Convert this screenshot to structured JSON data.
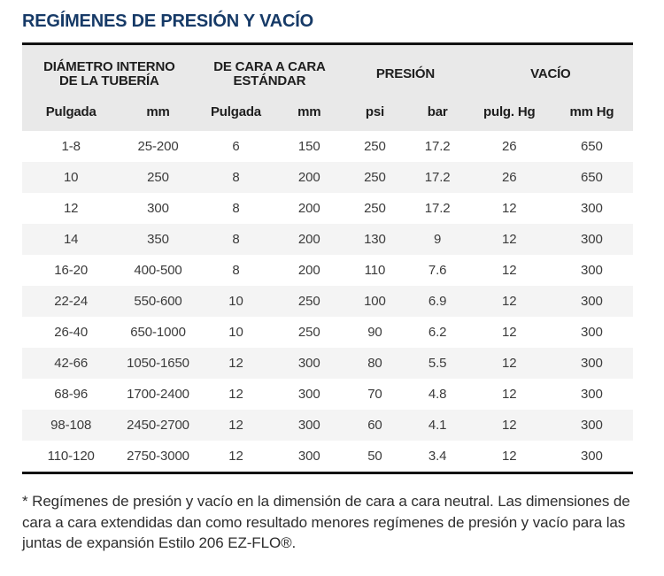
{
  "page": {
    "title": "REGÍMENES DE PRESIÓN Y VACÍO",
    "footnote": "* Regímenes de presión y vacío en la dimensión de cara a cara neutral. Las dimensiones de cara a cara extendidas dan como resultado menores regímenes de presión y vacío para las juntas de expansión Estilo 206 EZ-FLO®."
  },
  "colors": {
    "title_blue": "#163a67",
    "rule_black": "#121212",
    "header_bg": "#e9e9e9",
    "stripe_bg": "#f4f4f4",
    "header_text": "#1e1e1e",
    "cell_text": "#3b3b3b"
  },
  "table": {
    "group_headers": [
      {
        "line1": "DIÁMETRO INTERNO",
        "line2": "DE LA TUBERÍA"
      },
      {
        "line1": "DE CARA A CARA",
        "line2": "ESTÁNDAR"
      },
      {
        "line1": "PRESIÓN",
        "line2": ""
      },
      {
        "line1": "VACÍO",
        "line2": ""
      }
    ],
    "sub_headers": [
      "Pulgada",
      "mm",
      "Pulgada",
      "mm",
      "psi",
      "bar",
      "pulg. Hg",
      "mm Hg"
    ],
    "rows": [
      [
        "1-8",
        "25-200",
        "6",
        "150",
        "250",
        "17.2",
        "26",
        "650"
      ],
      [
        "10",
        "250",
        "8",
        "200",
        "250",
        "17.2",
        "26",
        "650"
      ],
      [
        "12",
        "300",
        "8",
        "200",
        "250",
        "17.2",
        "12",
        "300"
      ],
      [
        "14",
        "350",
        "8",
        "200",
        "130",
        "9",
        "12",
        "300"
      ],
      [
        "16-20",
        "400-500",
        "8",
        "200",
        "110",
        "7.6",
        "12",
        "300"
      ],
      [
        "22-24",
        "550-600",
        "10",
        "250",
        "100",
        "6.9",
        "12",
        "300"
      ],
      [
        "26-40",
        "650-1000",
        "10",
        "250",
        "90",
        "6.2",
        "12",
        "300"
      ],
      [
        "42-66",
        "1050-1650",
        "12",
        "300",
        "80",
        "5.5",
        "12",
        "300"
      ],
      [
        "68-96",
        "1700-2400",
        "12",
        "300",
        "70",
        "4.8",
        "12",
        "300"
      ],
      [
        "98-108",
        "2450-2700",
        "12",
        "300",
        "60",
        "4.1",
        "12",
        "300"
      ],
      [
        "110-120",
        "2750-3000",
        "12",
        "300",
        "50",
        "3.4",
        "12",
        "300"
      ]
    ]
  }
}
